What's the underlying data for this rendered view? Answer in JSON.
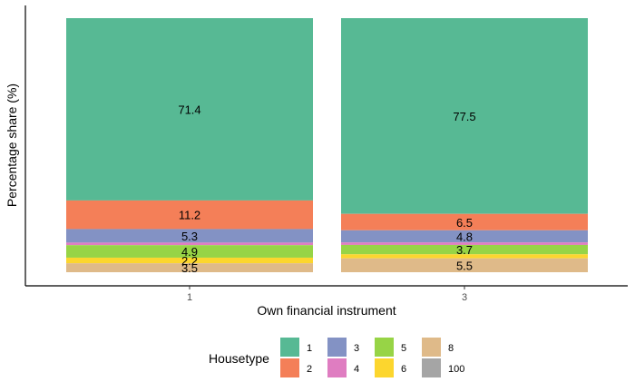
{
  "chart_data": {
    "type": "bar",
    "stacked": true,
    "percent": true,
    "xlabel": "Own financial instrument",
    "ylabel": "Percentage share (%)",
    "categories": [
      "1",
      "3"
    ],
    "ylim": [
      0,
      100
    ],
    "grid": false,
    "legend_position": "bottom",
    "legend_title": "Housetype",
    "series": [
      {
        "name": "1",
        "color": "#57B994",
        "values": [
          71.4,
          77.5
        ]
      },
      {
        "name": "2",
        "color": "#F47F58",
        "values": [
          11.2,
          6.5
        ]
      },
      {
        "name": "3",
        "color": "#8392C4",
        "values": [
          5.3,
          4.8
        ]
      },
      {
        "name": "4",
        "color": "#DF7DC1",
        "values": [
          1.0,
          1.0
        ]
      },
      {
        "name": "5",
        "color": "#97D446",
        "values": [
          4.9,
          3.7
        ]
      },
      {
        "name": "6",
        "color": "#FCD62E",
        "values": [
          2.2,
          1.6
        ]
      },
      {
        "name": "8",
        "color": "#DFBA89",
        "values": [
          3.5,
          5.5
        ]
      },
      {
        "name": "100",
        "color": "#A5A5A5",
        "values": [
          0,
          0
        ]
      }
    ],
    "data_labels": [
      [
        "71.4",
        "77.5"
      ],
      [
        "11.2",
        "6.5"
      ],
      [
        "5.3",
        "4.8"
      ],
      [
        "",
        ""
      ],
      [
        "4.9",
        "3.7"
      ],
      [
        "2.2",
        ""
      ],
      [
        "3.5",
        "5.5"
      ],
      [
        "",
        ""
      ]
    ]
  }
}
